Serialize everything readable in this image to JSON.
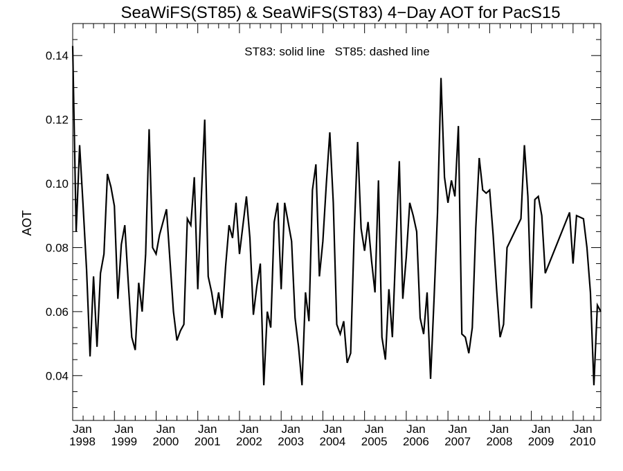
{
  "chart_data": {
    "type": "line",
    "title": "SeaWiFS(ST85) & SeaWiFS(ST83) 4−Day AOT for PacS15",
    "subtitle": "ST83: solid line   ST85: dashed line",
    "xlabel": "",
    "ylabel": "AOT",
    "xlim": [
      "1998-01-01",
      "2010-09-01"
    ],
    "ylim": [
      0.026,
      0.15
    ],
    "grid": false,
    "y_ticks": [
      "0.04",
      "0.06",
      "0.08",
      "0.10",
      "0.12",
      "0.14"
    ],
    "x_ticks": [
      {
        "month": "Jan",
        "year": "1998"
      },
      {
        "month": "Jan",
        "year": "1999"
      },
      {
        "month": "Jan",
        "year": "2000"
      },
      {
        "month": "Jan",
        "year": "2001"
      },
      {
        "month": "Jan",
        "year": "2002"
      },
      {
        "month": "Jan",
        "year": "2003"
      },
      {
        "month": "Jan",
        "year": "2004"
      },
      {
        "month": "Jan",
        "year": "2005"
      },
      {
        "month": "Jan",
        "year": "2006"
      },
      {
        "month": "Jan",
        "year": "2007"
      },
      {
        "month": "Jan",
        "year": "2008"
      },
      {
        "month": "Jan",
        "year": "2009"
      },
      {
        "month": "Jan",
        "year": "2010"
      }
    ],
    "series": [
      {
        "style": "solid",
        "points": [
          [
            "1998-01",
            0.143
          ],
          [
            "1998-02",
            0.085
          ],
          [
            "1998-03",
            0.112
          ],
          [
            "1998-04",
            0.093
          ],
          [
            "1998-05",
            0.073
          ],
          [
            "1998-06",
            0.046
          ],
          [
            "1998-07",
            0.071
          ],
          [
            "1998-08",
            0.049
          ],
          [
            "1998-09",
            0.072
          ],
          [
            "1998-10",
            0.078
          ],
          [
            "1998-11",
            0.103
          ],
          [
            "1998-12",
            0.099
          ],
          [
            "1999-01",
            0.093
          ],
          [
            "1999-02",
            0.064
          ],
          [
            "1999-03",
            0.081
          ],
          [
            "1999-04",
            0.087
          ],
          [
            "1999-05",
            0.069
          ],
          [
            "1999-06",
            0.052
          ],
          [
            "1999-07",
            0.048
          ],
          [
            "1999-08",
            0.069
          ],
          [
            "1999-09",
            0.06
          ],
          [
            "1999-10",
            0.078
          ],
          [
            "1999-11",
            0.117
          ],
          [
            "1999-12",
            0.08
          ],
          [
            "2000-01",
            0.078
          ],
          [
            "2000-02",
            0.084
          ],
          [
            "2000-03",
            0.088
          ],
          [
            "2000-04",
            0.092
          ],
          [
            "2000-05",
            0.076
          ],
          [
            "2000-06",
            0.06
          ],
          [
            "2000-07",
            0.051
          ],
          [
            "2000-08",
            0.054
          ],
          [
            "2000-09",
            0.056
          ],
          [
            "2000-10",
            0.089
          ],
          [
            "2000-11",
            0.087
          ],
          [
            "2000-12",
            0.102
          ],
          [
            "2001-01",
            0.067
          ],
          [
            "2001-02",
            0.095
          ],
          [
            "2001-03",
            0.12
          ],
          [
            "2001-04",
            0.071
          ],
          [
            "2001-05",
            0.066
          ],
          [
            "2001-06",
            0.059
          ],
          [
            "2001-07",
            0.066
          ],
          [
            "2001-08",
            0.058
          ],
          [
            "2001-09",
            0.074
          ],
          [
            "2001-10",
            0.087
          ],
          [
            "2001-11",
            0.083
          ],
          [
            "2001-12",
            0.094
          ],
          [
            "2002-01",
            0.078
          ],
          [
            "2002-02",
            0.087
          ],
          [
            "2002-03",
            0.096
          ],
          [
            "2002-04",
            0.083
          ],
          [
            "2002-05",
            0.059
          ],
          [
            "2002-06",
            0.068
          ],
          [
            "2002-07",
            0.075
          ],
          [
            "2002-08",
            0.037
          ],
          [
            "2002-09",
            0.06
          ],
          [
            "2002-10",
            0.055
          ],
          [
            "2002-11",
            0.088
          ],
          [
            "2002-12",
            0.094
          ],
          [
            "2003-01",
            0.067
          ],
          [
            "2003-02",
            0.094
          ],
          [
            "2003-03",
            0.088
          ],
          [
            "2003-04",
            0.082
          ],
          [
            "2003-05",
            0.058
          ],
          [
            "2003-06",
            0.049
          ],
          [
            "2003-07",
            0.037
          ],
          [
            "2003-08",
            0.066
          ],
          [
            "2003-09",
            0.057
          ],
          [
            "2003-10",
            0.098
          ],
          [
            "2003-11",
            0.106
          ],
          [
            "2003-12",
            0.071
          ],
          [
            "2004-01",
            0.082
          ],
          [
            "2004-02",
            0.1
          ],
          [
            "2004-03",
            0.116
          ],
          [
            "2004-04",
            0.094
          ],
          [
            "2004-05",
            0.056
          ],
          [
            "2004-06",
            0.053
          ],
          [
            "2004-07",
            0.057
          ],
          [
            "2004-08",
            0.044
          ],
          [
            "2004-09",
            0.047
          ],
          [
            "2004-10",
            0.084
          ],
          [
            "2004-11",
            0.113
          ],
          [
            "2004-12",
            0.086
          ],
          [
            "2005-01",
            0.079
          ],
          [
            "2005-02",
            0.088
          ],
          [
            "2005-03",
            0.076
          ],
          [
            "2005-04",
            0.066
          ],
          [
            "2005-05",
            0.101
          ],
          [
            "2005-06",
            0.052
          ],
          [
            "2005-07",
            0.045
          ],
          [
            "2005-08",
            0.067
          ],
          [
            "2005-09",
            0.052
          ],
          [
            "2005-10",
            0.08
          ],
          [
            "2005-11",
            0.107
          ],
          [
            "2005-12",
            0.064
          ],
          [
            "2006-01",
            0.077
          ],
          [
            "2006-02",
            0.094
          ],
          [
            "2006-03",
            0.09
          ],
          [
            "2006-04",
            0.085
          ],
          [
            "2006-05",
            0.058
          ],
          [
            "2006-06",
            0.053
          ],
          [
            "2006-07",
            0.066
          ],
          [
            "2006-08",
            0.039
          ],
          [
            "2006-09",
            0.064
          ],
          [
            "2006-10",
            0.091
          ],
          [
            "2006-11",
            0.133
          ],
          [
            "2006-12",
            0.102
          ],
          [
            "2007-01",
            0.094
          ],
          [
            "2007-02",
            0.101
          ],
          [
            "2007-03",
            0.096
          ],
          [
            "2007-04",
            0.118
          ],
          [
            "2007-05",
            0.053
          ],
          [
            "2007-06",
            0.052
          ],
          [
            "2007-07",
            0.047
          ],
          [
            "2007-08",
            0.055
          ],
          [
            "2007-09",
            0.086
          ],
          [
            "2007-10",
            0.108
          ],
          [
            "2007-11",
            0.098
          ],
          [
            "2007-12",
            0.097
          ],
          [
            "2008-01",
            0.098
          ],
          [
            "2008-02",
            0.084
          ],
          [
            "2008-03",
            0.067
          ],
          [
            "2008-04",
            0.052
          ],
          [
            "2008-05",
            0.056
          ],
          [
            "2008-06",
            0.08
          ],
          [
            "2008-10",
            0.089
          ],
          [
            "2008-11",
            0.112
          ],
          [
            "2008-12",
            0.096
          ],
          [
            "2009-01",
            0.061
          ],
          [
            "2009-02",
            0.095
          ],
          [
            "2009-03",
            0.096
          ],
          [
            "2009-04",
            0.09
          ],
          [
            "2009-05",
            0.072
          ],
          [
            "2009-12",
            0.091
          ],
          [
            "2010-01",
            0.075
          ],
          [
            "2010-02",
            0.09
          ],
          [
            "2010-04",
            0.089
          ],
          [
            "2010-05",
            0.08
          ],
          [
            "2010-06",
            0.066
          ],
          [
            "2010-07",
            0.037
          ],
          [
            "2010-08",
            0.062
          ],
          [
            "2010-09",
            0.06
          ]
        ]
      }
    ]
  }
}
